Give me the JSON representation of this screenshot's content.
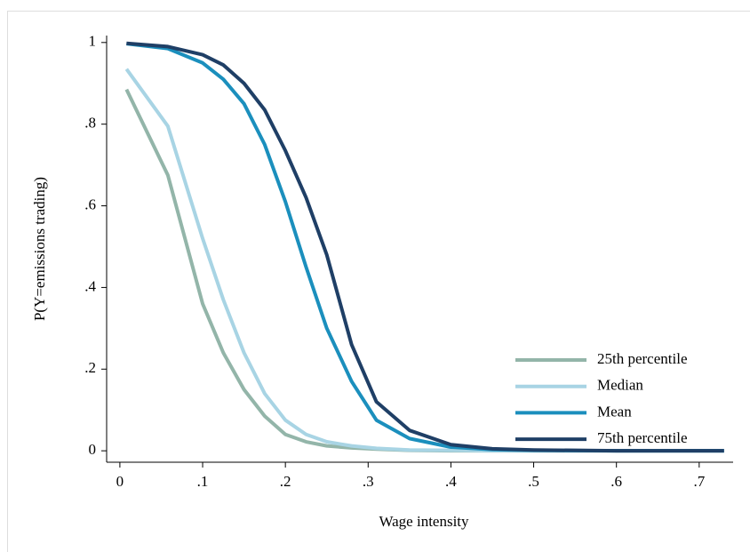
{
  "chart_data": {
    "type": "line",
    "x_label": "Wage intensity",
    "y_label": "P(Y=emissions trading)",
    "x": [
      0.008,
      0.058,
      0.1,
      0.125,
      0.15,
      0.175,
      0.2,
      0.225,
      0.25,
      0.28,
      0.31,
      0.35,
      0.4,
      0.45,
      0.5,
      0.6,
      0.73
    ],
    "series": [
      {
        "name": "25th percentile",
        "color": "#93b5a9",
        "values": [
          0.885,
          0.675,
          0.36,
          0.24,
          0.15,
          0.085,
          0.04,
          0.022,
          0.012,
          0.007,
          0.004,
          0.001,
          0,
          0,
          0,
          0,
          0
        ]
      },
      {
        "name": "Median",
        "color": "#a8d4e4",
        "values": [
          0.935,
          0.795,
          0.52,
          0.37,
          0.24,
          0.14,
          0.075,
          0.04,
          0.022,
          0.012,
          0.006,
          0.002,
          0.001,
          0,
          0,
          0,
          0
        ]
      },
      {
        "name": "Mean",
        "color": "#1b8fbd",
        "values": [
          0.997,
          0.985,
          0.95,
          0.91,
          0.85,
          0.75,
          0.61,
          0.45,
          0.3,
          0.17,
          0.075,
          0.03,
          0.009,
          0.003,
          0.001,
          0,
          0
        ]
      },
      {
        "name": "75th percentile",
        "color": "#1f3f66",
        "values": [
          0.998,
          0.99,
          0.97,
          0.945,
          0.9,
          0.835,
          0.735,
          0.62,
          0.48,
          0.26,
          0.12,
          0.05,
          0.015,
          0.005,
          0.002,
          0,
          0
        ]
      }
    ],
    "xlim": [
      -0.016,
      0.741
    ],
    "ylim": [
      -0.028,
      1.017
    ],
    "xticks": [
      0,
      {
        "value": 0.1,
        "label": ".1"
      },
      {
        "value": 0.2,
        "label": ".2"
      },
      {
        "value": 0.3,
        "label": ".3"
      },
      {
        "value": 0.4,
        "label": ".4"
      },
      {
        "value": 0.5,
        "label": ".5"
      },
      {
        "value": 0.6,
        "label": ".6"
      },
      {
        "value": 0.7,
        "label": ".7"
      }
    ],
    "yticks": [
      0,
      {
        "value": 0.2,
        "label": ".2"
      },
      {
        "value": 0.4,
        "label": ".4"
      },
      {
        "value": 0.6,
        "label": ".6"
      },
      {
        "value": 0.8,
        "label": ".8"
      },
      1
    ],
    "legend": "lower right"
  }
}
